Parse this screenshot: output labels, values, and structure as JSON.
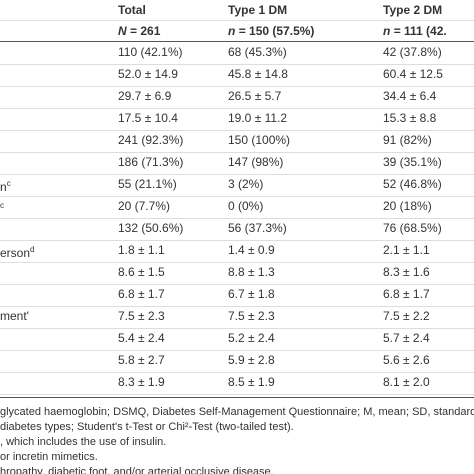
{
  "header": {
    "columns": [
      "Total",
      "Type 1 DM",
      "Type 2 DM"
    ],
    "n_var": [
      "N",
      "n",
      "n"
    ],
    "n_rest": [
      "= 261",
      "= 150 (57.5%)",
      "= 111 (42."
    ]
  },
  "table": {
    "labels": [
      null,
      null,
      null,
      null,
      null,
      null,
      {
        "text": "n",
        "sup": "c"
      },
      {
        "text": "",
        "sup": "c"
      },
      null,
      {
        "text": "erson",
        "sup": "d"
      },
      null,
      null,
      {
        "text": "ment'",
        "sup": ""
      },
      null,
      null,
      null
    ],
    "rows": [
      [
        "110 (42.1%)",
        "68 (45.3%)",
        "42 (37.8%)"
      ],
      [
        "52.0 ± 14.9",
        "45.8 ± 14.8",
        "60.4 ± 12.5"
      ],
      [
        "29.7 ± 6.9",
        "26.5 ± 5.7",
        "34.4 ± 6.4"
      ],
      [
        "17.5 ± 10.4",
        "19.0 ± 11.2",
        "15.3 ± 8.8"
      ],
      [
        "241 (92.3%)",
        "150 (100%)",
        "91 (82%)"
      ],
      [
        "186 (71.3%)",
        "147 (98%)",
        "39 (35.1%)"
      ],
      [
        "55 (21.1%)",
        "3 (2%)",
        "52 (46.8%)"
      ],
      [
        "20 (7.7%)",
        "0 (0%)",
        "20 (18%)"
      ],
      [
        "132 (50.6%)",
        "56 (37.3%)",
        "76 (68.5%)"
      ],
      [
        "1.8 ± 1.1",
        "1.4 ± 0.9",
        "2.1 ± 1.1"
      ],
      [
        "8.6 ± 1.5",
        "8.8 ± 1.3",
        "8.3 ± 1.6"
      ],
      [
        "6.8 ± 1.7",
        "6.7 ± 1.8",
        "6.8 ± 1.7"
      ],
      [
        "7.5 ± 2.3",
        "7.5 ± 2.3",
        "7.5 ± 2.2"
      ],
      [
        "5.4 ± 2.4",
        "5.2 ± 2.4",
        "5.7 ± 2.4"
      ],
      [
        "5.8 ± 2.7",
        "5.9 ± 2.8",
        "5.6 ± 2.6"
      ],
      [
        "8.3 ± 1.9",
        "8.5 ± 1.9",
        "8.1 ± 2.0"
      ]
    ]
  },
  "footnotes": [
    "glycated haemoglobin; DSMQ, Diabetes Self-Management Questionnaire; M, mean; SD, standard devia",
    "diabetes types; Student's t-Test or Chi²-Test (two-tailed test).",
    ", which includes the use of insulin.",
    "or incretin mimetics.",
    "hropathy, diabetic foot, and/or arterial occlusive disease."
  ]
}
